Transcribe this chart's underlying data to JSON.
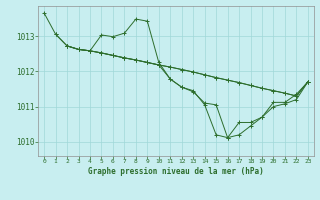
{
  "title": "Graphe pression niveau de la mer (hPa)",
  "bg_color": "#c8eef0",
  "grid_color": "#a0d8d8",
  "line_color": "#2d6e2d",
  "marker_color": "#2d6e2d",
  "xlim": [
    -0.5,
    23.5
  ],
  "ylim": [
    1009.6,
    1013.85
  ],
  "yticks": [
    1010,
    1011,
    1012,
    1013
  ],
  "xticks": [
    0,
    1,
    2,
    3,
    4,
    5,
    6,
    7,
    8,
    9,
    10,
    11,
    12,
    13,
    14,
    15,
    16,
    17,
    18,
    19,
    20,
    21,
    22,
    23
  ],
  "series": [
    {
      "x": [
        0,
        1,
        2,
        3,
        4,
        5,
        6,
        7,
        8,
        9,
        10,
        11,
        12,
        13,
        14,
        15,
        16,
        17,
        18,
        19,
        20,
        21,
        22,
        23
      ],
      "y": [
        1013.65,
        1013.05,
        1012.72,
        1012.62,
        1012.58,
        1012.52,
        1012.45,
        1012.38,
        1012.32,
        1012.25,
        1012.18,
        1012.12,
        1012.05,
        1011.98,
        1011.9,
        1011.82,
        1011.75,
        1011.68,
        1011.6,
        1011.52,
        1011.45,
        1011.38,
        1011.3,
        1011.7
      ]
    },
    {
      "x": [
        1,
        2,
        3,
        4,
        5,
        6,
        7,
        8,
        9,
        10,
        11,
        12,
        13,
        14,
        15,
        16,
        17,
        18,
        19,
        20,
        21,
        22,
        23
      ],
      "y": [
        1013.05,
        1012.72,
        1012.62,
        1012.58,
        1013.03,
        1012.98,
        1013.08,
        1013.48,
        1013.42,
        1012.25,
        1011.78,
        1011.55,
        1011.45,
        1011.05,
        1010.2,
        1010.12,
        1010.2,
        1010.45,
        1010.7,
        1011.12,
        1011.12,
        1011.35,
        1011.7
      ]
    },
    {
      "x": [
        2,
        3,
        4,
        5,
        6,
        7,
        8,
        9,
        10,
        11,
        12,
        13,
        14,
        15,
        16,
        17,
        18,
        19,
        20,
        21,
        22,
        23
      ],
      "y": [
        1012.72,
        1012.62,
        1012.58,
        1012.52,
        1012.45,
        1012.38,
        1012.32,
        1012.25,
        1012.18,
        1012.12,
        1012.05,
        1011.98,
        1011.9,
        1011.82,
        1011.75,
        1011.68,
        1011.6,
        1011.52,
        1011.45,
        1011.38,
        1011.3,
        1011.7
      ]
    },
    {
      "x": [
        2,
        3,
        4,
        5,
        6,
        7,
        8,
        9,
        10,
        11,
        12,
        13,
        14,
        15,
        16,
        17,
        18,
        19,
        20,
        21,
        22,
        23
      ],
      "y": [
        1012.72,
        1012.62,
        1012.58,
        1012.52,
        1012.45,
        1012.38,
        1012.32,
        1012.25,
        1012.18,
        1011.78,
        1011.55,
        1011.42,
        1011.1,
        1011.05,
        1010.12,
        1010.55,
        1010.55,
        1010.7,
        1011.0,
        1011.08,
        1011.2,
        1011.7
      ]
    }
  ]
}
